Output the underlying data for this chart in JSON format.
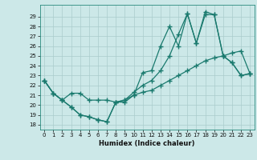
{
  "title": "",
  "xlabel": "Humidex (Indice chaleur)",
  "bg_color": "#cce8e8",
  "line_color": "#1a7a6e",
  "grid_color": "#aacccc",
  "xlim": [
    -0.5,
    23.5
  ],
  "ylim": [
    17.5,
    30.2
  ],
  "yticks": [
    18,
    19,
    20,
    21,
    22,
    23,
    24,
    25,
    26,
    27,
    28,
    29
  ],
  "xticks": [
    0,
    1,
    2,
    3,
    4,
    5,
    6,
    7,
    8,
    9,
    10,
    11,
    12,
    13,
    14,
    15,
    16,
    17,
    18,
    19,
    20,
    21,
    22,
    23
  ],
  "series1_x": [
    0,
    1,
    2,
    3,
    4,
    5,
    6,
    7,
    8,
    9,
    10,
    11,
    12,
    13,
    14,
    15,
    16,
    17,
    18,
    19,
    20,
    21,
    22,
    23
  ],
  "series1_y": [
    22.5,
    21.2,
    20.5,
    19.8,
    19.0,
    18.8,
    18.5,
    18.3,
    20.3,
    20.3,
    21.0,
    23.3,
    23.5,
    26.0,
    28.0,
    26.0,
    29.3,
    26.3,
    29.2,
    29.2,
    25.0,
    24.3,
    23.0,
    23.2
  ],
  "series2_x": [
    0,
    1,
    2,
    3,
    4,
    5,
    6,
    7,
    8,
    9,
    10,
    11,
    12,
    13,
    14,
    15,
    16,
    17,
    18,
    19,
    20,
    21,
    22,
    23
  ],
  "series2_y": [
    22.5,
    21.2,
    20.5,
    21.2,
    21.2,
    20.5,
    20.5,
    20.5,
    20.3,
    20.5,
    21.3,
    22.0,
    22.5,
    23.5,
    25.0,
    27.2,
    29.3,
    26.3,
    29.5,
    29.2,
    25.0,
    24.3,
    23.0,
    23.2
  ],
  "series3_x": [
    0,
    1,
    2,
    3,
    4,
    5,
    6,
    7,
    8,
    9,
    10,
    11,
    12,
    13,
    14,
    15,
    16,
    17,
    18,
    19,
    20,
    21,
    22,
    23
  ],
  "series3_y": [
    22.5,
    21.2,
    20.5,
    19.8,
    19.0,
    18.8,
    18.5,
    18.3,
    20.3,
    20.5,
    21.0,
    21.3,
    21.5,
    22.0,
    22.5,
    23.0,
    23.5,
    24.0,
    24.5,
    24.8,
    25.0,
    25.3,
    25.5,
    23.2
  ]
}
